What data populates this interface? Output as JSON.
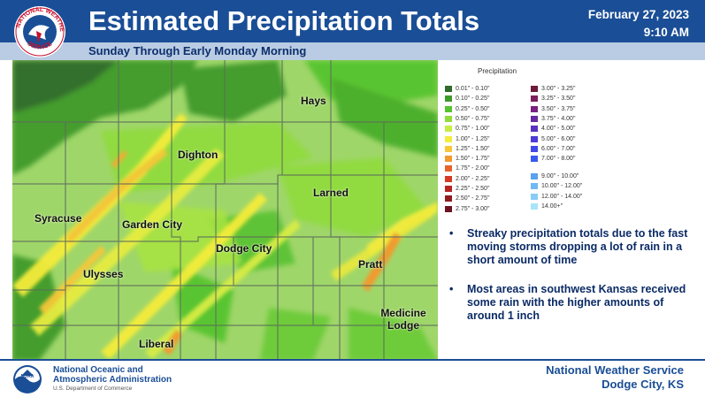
{
  "header": {
    "title": "Estimated Precipitation Totals",
    "subtitle": "Sunday Through Early Monday Morning",
    "date": "February 27, 2023",
    "time": "9:10 AM",
    "logo_icon": "nws-logo-icon",
    "header_color": "#1a4e96"
  },
  "map": {
    "cities": [
      {
        "name": "Hays"
      },
      {
        "name": "Dighton"
      },
      {
        "name": "Larned"
      },
      {
        "name": "Syracuse"
      },
      {
        "name": "Garden City"
      },
      {
        "name": "Dodge City"
      },
      {
        "name": "Pratt"
      },
      {
        "name": "Ulysses"
      },
      {
        "name": "Medicine Lodge"
      },
      {
        "name": "Liberal"
      }
    ]
  },
  "legend": {
    "title": "Precipitation",
    "items": [
      {
        "label": "0.01\" - 0.10\"",
        "color": "#2f6b2a"
      },
      {
        "label": "0.10\" - 0.25\"",
        "color": "#3f9a2b"
      },
      {
        "label": "0.25\" - 0.50\"",
        "color": "#56c42e"
      },
      {
        "label": "0.50\" - 0.75\"",
        "color": "#8fdc3b"
      },
      {
        "label": "0.75\" - 1.00\"",
        "color": "#c8ec44"
      },
      {
        "label": "1.00\" - 1.25\"",
        "color": "#f4ec3a"
      },
      {
        "label": "1.25\" - 1.50\"",
        "color": "#f7c737"
      },
      {
        "label": "1.50\" - 1.75\"",
        "color": "#f29a2e"
      },
      {
        "label": "1.75\" - 2.00\"",
        "color": "#e8632a"
      },
      {
        "label": "2.00\" - 2.25\"",
        "color": "#d63a26"
      },
      {
        "label": "2.25\" - 2.50\"",
        "color": "#b72322"
      },
      {
        "label": "2.50\" - 2.75\"",
        "color": "#8f1b1f"
      },
      {
        "label": "2.75\" - 3.00\"",
        "color": "#6b1420"
      },
      {
        "label": "3.00\" - 3.25\"",
        "color": "#6e1a3a"
      },
      {
        "label": "3.25\" - 3.50\"",
        "color": "#7d1f5e"
      },
      {
        "label": "3.50\" - 3.75\"",
        "color": "#7a2080"
      },
      {
        "label": "3.75\" - 4.00\"",
        "color": "#6a28a0"
      },
      {
        "label": "4.00\" - 5.00\"",
        "color": "#5a30c0"
      },
      {
        "label": "5.00\" - 6.00\"",
        "color": "#4d3ad8"
      },
      {
        "label": "6.00\" - 7.00\"",
        "color": "#4148e6"
      },
      {
        "label": "7.00\" - 8.00\"",
        "color": "#3a58ee"
      },
      {
        "label": "9.00\" - 10.00\"",
        "color": "#5aa0f0"
      },
      {
        "label": "10.00\" - 12.00\"",
        "color": "#70b8f4"
      },
      {
        "label": "12.00\" - 14.00\"",
        "color": "#88ccf6"
      },
      {
        "label": "14.00+\"",
        "color": "#a8e4fa"
      }
    ]
  },
  "bullets": [
    "Streaky precipitation totals due to the fast moving storms dropping a lot of rain in a short amount of time",
    "Most areas in southwest Kansas received some rain with the higher amounts of around 1 inch"
  ],
  "footer": {
    "noaa_line1": "National Oceanic and",
    "noaa_line2": "Atmospheric Administration",
    "noaa_sub": "U.S. Department of Commerce",
    "nws_line1": "National Weather Service",
    "nws_line2": "Dodge City, KS",
    "noaa_icon": "noaa-logo-icon"
  }
}
